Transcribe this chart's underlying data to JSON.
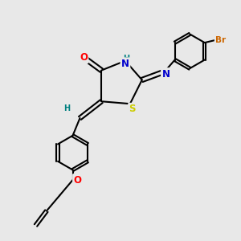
{
  "background_color": "#e8e8e8",
  "bond_color": "#000000",
  "bond_width": 1.5,
  "atom_colors": {
    "O": "#ff0000",
    "N": "#0000cd",
    "S": "#cccc00",
    "Br": "#cc6600",
    "H_label": "#008080"
  },
  "font_size_atoms": 8.5,
  "font_size_small": 7.0,
  "xlim": [
    0,
    10
  ],
  "ylim": [
    0,
    10
  ]
}
